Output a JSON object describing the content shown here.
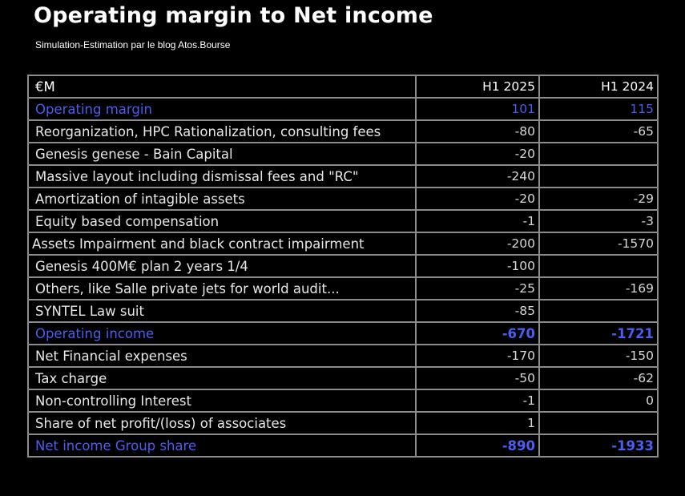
{
  "title": "Operating margin to Net income",
  "subtitle": "Simulation-Estimation par le blog Atos.Bourse",
  "colors": {
    "background": "#000000",
    "text": "#ffffff",
    "highlight": "#4a5ef0",
    "grid": "#8c8c8c"
  },
  "table": {
    "headers": [
      "€M",
      "H1 2025",
      "H1 2024"
    ],
    "rows": [
      {
        "label": "Operating margin",
        "h1_2025": "101",
        "h1_2024": "115"
      },
      {
        "label": "Reorganization, HPC Rationalization, consulting fees",
        "h1_2025": "-80",
        "h1_2024": "-65"
      },
      {
        "label": "Genesis genese - Bain Capital",
        "h1_2025": "-20",
        "h1_2024": ""
      },
      {
        "label": "Massive layout including dismissal fees and \"RC\"",
        "h1_2025": "-240",
        "h1_2024": ""
      },
      {
        "label": "Amortization of intagible assets",
        "h1_2025": "-20",
        "h1_2024": "-29"
      },
      {
        "label": "Equity based compensation",
        "h1_2025": "-1",
        "h1_2024": "-3"
      },
      {
        "label": "Assets Impairment and black contract impairment",
        "h1_2025": "-200",
        "h1_2024": "-1570"
      },
      {
        "label": "Genesis 400M€ plan 2 years 1/4",
        "h1_2025": "-100",
        "h1_2024": ""
      },
      {
        "label": "Others, like Salle private jets for world audit...",
        "h1_2025": "-25",
        "h1_2024": "-169"
      },
      {
        "label": "SYNTEL Law suit",
        "h1_2025": "-85",
        "h1_2024": ""
      },
      {
        "label": "Operating income",
        "h1_2025": "-670",
        "h1_2024": "-1721"
      },
      {
        "label": "Net Financial expenses",
        "h1_2025": "-170",
        "h1_2024": "-150"
      },
      {
        "label": "Tax charge",
        "h1_2025": "-50",
        "h1_2024": "-62"
      },
      {
        "label": "Non-controlling Interest",
        "h1_2025": "-1",
        "h1_2024": "0"
      },
      {
        "label": "Share of net profit/(loss) of associates",
        "h1_2025": "1",
        "h1_2024": ""
      },
      {
        "label": "Net income Group share",
        "h1_2025": "-890",
        "h1_2024": "-1933"
      }
    ]
  }
}
